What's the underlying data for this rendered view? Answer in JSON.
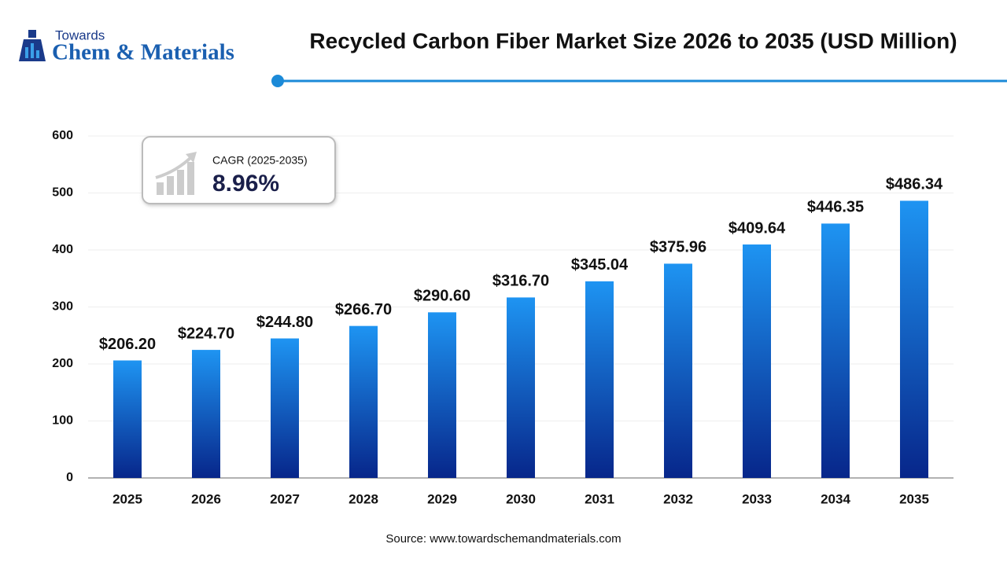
{
  "logo": {
    "line1": "Towards",
    "line2": "Chem & Materials"
  },
  "chart_data": {
    "type": "bar",
    "title": "Recycled Carbon Fiber Market Size 2026 to 2035 (USD Million)",
    "categories": [
      "2025",
      "2026",
      "2027",
      "2028",
      "2029",
      "2030",
      "2031",
      "2032",
      "2033",
      "2034",
      "2035"
    ],
    "values": [
      206.2,
      224.7,
      244.8,
      266.7,
      290.6,
      316.7,
      345.04,
      375.96,
      409.64,
      446.35,
      486.34
    ],
    "value_labels": [
      "$206.20",
      "$224.70",
      "$244.80",
      "$266.70",
      "$290.60",
      "$316.70",
      "$345.04",
      "$375.96",
      "$409.64",
      "$446.35",
      "$486.34"
    ],
    "gradient": [
      "#1e94f2",
      "#07268a"
    ],
    "ylim": [
      0,
      600
    ],
    "yticks": [
      0,
      100,
      200,
      300,
      400,
      500,
      600
    ],
    "grid": true,
    "annotation": {
      "label": "CAGR (2025-2035)",
      "value": "8.96%"
    },
    "source": "Source: www.towardschemandmaterials.com"
  }
}
